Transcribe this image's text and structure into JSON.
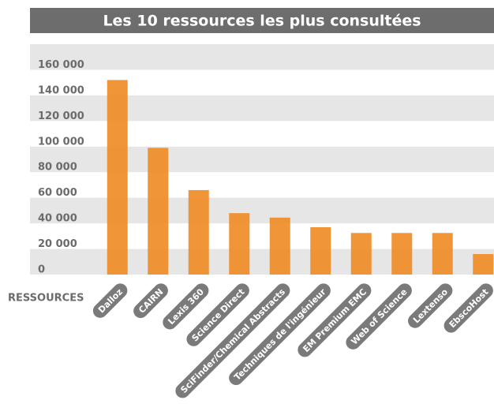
{
  "chart_data": {
    "type": "bar",
    "title": "Les 10 ressources les plus consultées",
    "x_label": "RESSOURCES",
    "categories": [
      "Dalloz",
      "CAIRN",
      "Lexis 360",
      "Science Direct",
      "SciFinder/Chemical Abstracts",
      "Techniques de l'ingénieur",
      "EM Premium EMC",
      "Web of Science",
      "Lextenso",
      "EbscoHost"
    ],
    "values": [
      152000,
      99000,
      66000,
      48000,
      44500,
      37000,
      32500,
      32500,
      32500,
      16000
    ],
    "color": "#ef8a23",
    "ylim": [
      0,
      180000
    ],
    "yticks": [
      {
        "value": 0,
        "label": "0"
      },
      {
        "value": 20000,
        "label": "20 000"
      },
      {
        "value": 40000,
        "label": "40 000"
      },
      {
        "value": 60000,
        "label": "60 000"
      },
      {
        "value": 80000,
        "label": "80 000"
      },
      {
        "value": 100000,
        "label": "100 000"
      },
      {
        "value": 120000,
        "label": "120 000"
      },
      {
        "value": 140000,
        "label": "140 000"
      },
      {
        "value": 160000,
        "label": "160 000"
      }
    ],
    "grid": true
  }
}
